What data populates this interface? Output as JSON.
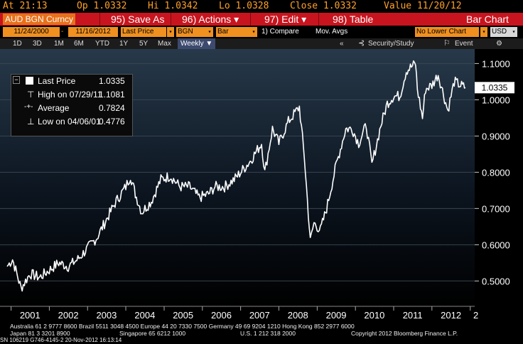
{
  "quote": {
    "at": "At 21:13",
    "op": "Op 1.0332",
    "hi": "Hi 1.0342",
    "lo": "Lo 1.0328",
    "close": "Close 1.0332",
    "value": "Value 11/20/12"
  },
  "toolbar": {
    "ticker": "AUD BGN Curncy",
    "save_as": "95) Save As",
    "actions": "96) Actions ▾",
    "edit": "97) Edit ▾",
    "table": "98) Table",
    "chart_type": "Bar Chart"
  },
  "params": {
    "start_date": "11/24/2000",
    "end_date": "11/16/2012",
    "field": "Last Price",
    "source": "BGN",
    "style": "Bar",
    "compare": "1) Compare",
    "mov_avgs": "Mov. Avgs",
    "lower_chart": "No Lower Chart",
    "currency": "USD"
  },
  "periods": {
    "items": [
      "1D",
      "3D",
      "1M",
      "6M",
      "YTD",
      "1Y",
      "5Y",
      "Max"
    ],
    "selected": "Weekly ▼",
    "collapse": "«",
    "security_study": "Security/Study",
    "event": "Event",
    "settings": "⚙"
  },
  "legend": {
    "last_label": "Last Price",
    "last_value": "1.0335",
    "high_label": "High on 07/29/11",
    "high_value": "1.1081",
    "avg_label": "Average",
    "avg_value": "0.7824",
    "low_label": "Low on 04/06/01",
    "low_value": "0.4776"
  },
  "chart_data": {
    "type": "line",
    "series": [
      {
        "x": [
          "2000-11-24",
          "2001-01-15",
          "2001-04-06",
          "2001-07-01",
          "2001-10-01",
          "2002-01-01",
          "2002-04-01",
          "2002-07-01",
          "2002-10-01",
          "2003-01-01",
          "2003-04-01",
          "2003-07-01",
          "2003-10-01",
          "2004-01-01",
          "2004-02-15",
          "2004-04-01",
          "2004-06-01",
          "2004-09-01",
          "2004-12-01",
          "2005-03-01",
          "2005-06-01",
          "2005-09-01",
          "2005-12-01",
          "2006-03-01",
          "2006-05-01",
          "2006-08-01",
          "2006-11-01",
          "2007-01-01",
          "2007-04-01",
          "2007-07-20",
          "2007-08-20",
          "2007-11-01",
          "2008-01-01",
          "2008-04-01",
          "2008-07-15",
          "2008-09-01",
          "2008-10-27",
          "2008-12-01",
          "2009-02-01",
          "2009-04-01",
          "2009-07-01",
          "2009-10-01",
          "2009-12-01",
          "2010-02-01",
          "2010-04-15",
          "2010-06-07",
          "2010-09-01",
          "2010-11-01",
          "2011-01-01",
          "2011-03-01",
          "2011-05-01",
          "2011-07-29",
          "2011-08-15",
          "2011-10-03",
          "2011-11-01",
          "2012-01-01",
          "2012-03-01",
          "2012-06-01",
          "2012-08-01",
          "2012-10-01",
          "2012-11-16"
        ],
        "y": [
          0.54,
          0.56,
          0.48,
          0.52,
          0.51,
          0.53,
          0.55,
          0.54,
          0.56,
          0.59,
          0.62,
          0.67,
          0.72,
          0.76,
          0.79,
          0.74,
          0.69,
          0.72,
          0.78,
          0.79,
          0.76,
          0.76,
          0.73,
          0.74,
          0.76,
          0.76,
          0.78,
          0.8,
          0.83,
          0.88,
          0.8,
          0.92,
          0.88,
          0.94,
          0.98,
          0.84,
          0.61,
          0.66,
          0.64,
          0.7,
          0.82,
          0.92,
          0.92,
          0.88,
          0.93,
          0.82,
          0.93,
          0.99,
          1.01,
          1.01,
          1.08,
          1.1,
          1.03,
          0.95,
          1.03,
          1.04,
          1.07,
          0.97,
          1.05,
          1.04,
          1.0335
        ]
      }
    ],
    "ylim": [
      0.43,
      1.14
    ],
    "y_ticks": [
      "0.5000",
      "0.6000",
      "0.7000",
      "0.8000",
      "0.9000",
      "1.0000",
      "1.1000"
    ],
    "x_ticks": [
      "2001",
      "2002",
      "2003",
      "2004",
      "2005",
      "2006",
      "2007",
      "2008",
      "2009",
      "2010",
      "2011",
      "2012",
      "2"
    ],
    "last_price_tag": "1.0335",
    "background": "#000000",
    "line_color": "#ffffff"
  },
  "footer": {
    "line1": "Australia 61 2 9777 8600 Brazil 5511 3048 4500 Europe 44 20 7330 7500 Germany 49 69 9204 1210 Hong Kong 852 2977 6000",
    "line2a": "Japan 81 3 3201 8900",
    "line2b": "Singapore 65 6212 1000",
    "line2c": "U.S. 1 212 318 2000",
    "line2d": "Copyright 2012 Bloomberg Finance L.P.",
    "line2e": "SN 106219 G746-4145-2 20-Nov-2012 16:13:14"
  }
}
